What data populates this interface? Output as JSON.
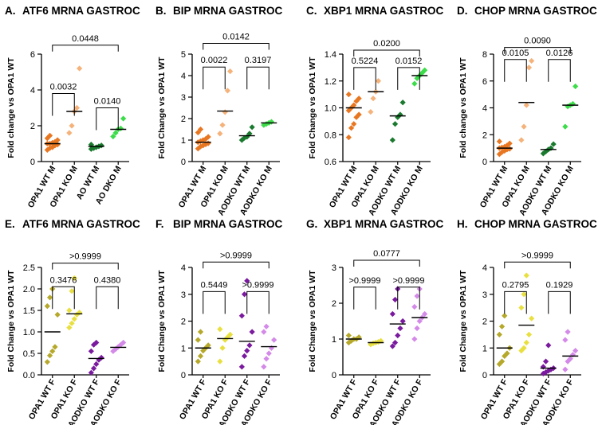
{
  "colors": {
    "orange": "#e87722",
    "light_orange": "#f5b27a",
    "dark_green": "#1a7a2e",
    "light_green": "#3ddc4a",
    "olive": "#b5a82a",
    "yellow": "#e8e040",
    "purple": "#7a1a9e",
    "light_purple": "#d48ae8"
  },
  "chart_data": [
    {
      "panel_label": "A.",
      "title": "ATF6 MRNA GASTROC",
      "type": "scatter",
      "ylabel": "Fold change vs OPA1 WT",
      "ylim": [
        0,
        6
      ],
      "yticks": [
        0,
        2,
        4,
        6
      ],
      "categories": [
        "OPA1 WT M",
        "OPA1 KO M",
        "AO WT M",
        "AO DKO M"
      ],
      "colors": [
        "orange",
        "light_orange",
        "dark_green",
        "light_green"
      ],
      "means": [
        1.0,
        2.8,
        0.85,
        1.8
      ],
      "points": [
        [
          0.65,
          0.75,
          0.8,
          0.9,
          0.95,
          1.0,
          1.0,
          1.05,
          1.1,
          1.2,
          1.3,
          1.45
        ],
        [
          1.6,
          2.0,
          2.8,
          3.0,
          5.2
        ],
        [
          0.7,
          0.75,
          0.8,
          0.85,
          0.9,
          0.95
        ],
        [
          1.4,
          1.6,
          1.8,
          1.85,
          2.4
        ]
      ],
      "comparisons": [
        {
          "from": 0,
          "to": 1,
          "label": "0.0032",
          "y": 3.8
        },
        {
          "from": 2,
          "to": 3,
          "label": "0.0140",
          "y": 3.0
        },
        {
          "from": 0,
          "to": 3,
          "label": "0.0448",
          "y": 6.5
        }
      ]
    },
    {
      "panel_label": "B.",
      "title": "BIP MRNA GASTROC",
      "type": "scatter",
      "ylabel": "Fold Change vs OPA1 WT",
      "ylim": [
        0,
        5
      ],
      "yticks": [
        0,
        1,
        2,
        3,
        4,
        5
      ],
      "categories": [
        "OPA1 WT M",
        "OPA1 KO M",
        "AODKO WT M",
        "AODKO KO M"
      ],
      "colors": [
        "orange",
        "light_orange",
        "dark_green",
        "light_green"
      ],
      "means": [
        0.9,
        2.35,
        1.2,
        1.8
      ],
      "points": [
        [
          0.6,
          0.7,
          0.75,
          0.8,
          0.85,
          0.9,
          0.95,
          1.0,
          1.05,
          1.15,
          1.35,
          1.5
        ],
        [
          1.3,
          1.7,
          2.3,
          3.3,
          4.2
        ],
        [
          1.0,
          1.1,
          1.15,
          1.3,
          1.6
        ],
        [
          1.7,
          1.75,
          1.8,
          1.85
        ]
      ],
      "comparisons": [
        {
          "from": 0,
          "to": 1,
          "label": "0.0022",
          "y": 4.4
        },
        {
          "from": 2,
          "to": 3,
          "label": "0.3197",
          "y": 4.4
        },
        {
          "from": 0,
          "to": 3,
          "label": "0.0142",
          "y": 5.5
        }
      ]
    },
    {
      "panel_label": "C.",
      "title": "XBP1 MRNA GASTROC",
      "type": "scatter",
      "ylabel": "Fold Change vs OPA1 WT",
      "ylim": [
        0.6,
        1.4
      ],
      "yticks": [
        0.6,
        0.8,
        1.0,
        1.2,
        1.4
      ],
      "categories": [
        "OPA1 WT M",
        "OPA1 KO M",
        "AODKO WT M",
        "AODKO KO M"
      ],
      "colors": [
        "orange",
        "light_orange",
        "dark_green",
        "light_green"
      ],
      "means": [
        1.0,
        1.12,
        0.94,
        1.24
      ],
      "points": [
        [
          0.78,
          0.85,
          0.88,
          0.93,
          0.95,
          0.98,
          1.0,
          1.02,
          1.05,
          1.07,
          1.1
        ],
        [
          0.97,
          1.07,
          1.12,
          1.2
        ],
        [
          0.76,
          0.88,
          0.93,
          0.95,
          1.04
        ],
        [
          1.18,
          1.22,
          1.24,
          1.26,
          1.28
        ]
      ],
      "comparisons": [
        {
          "from": 0,
          "to": 1,
          "label": "0.5224",
          "y": 1.3
        },
        {
          "from": 2,
          "to": 3,
          "label": "0.0152",
          "y": 1.3
        },
        {
          "from": 0,
          "to": 3,
          "label": "0.0200",
          "y": 1.43
        }
      ]
    },
    {
      "panel_label": "D.",
      "title": "CHOP MRNA GASTROC",
      "type": "scatter",
      "ylabel": "Fold change vs OPA1 WT",
      "ylim": [
        0,
        8
      ],
      "yticks": [
        0,
        2,
        4,
        6,
        8
      ],
      "categories": [
        "OPA1 WT M",
        "OPA1 KO M",
        "AODKO WT M",
        "AODKO KO M"
      ],
      "colors": [
        "orange",
        "light_orange",
        "dark_green",
        "light_green"
      ],
      "means": [
        1.0,
        4.4,
        0.9,
        4.2
      ],
      "points": [
        [
          0.55,
          0.7,
          0.8,
          0.9,
          0.95,
          1.0,
          1.05,
          1.1,
          1.2,
          1.35,
          1.5
        ],
        [
          1.6,
          2.6,
          4.2,
          7.0,
          7.5
        ],
        [
          0.6,
          0.75,
          0.9,
          1.0,
          1.3
        ],
        [
          2.6,
          4.1,
          4.2,
          4.3,
          5.6
        ]
      ],
      "comparisons": [
        {
          "from": 0,
          "to": 1,
          "label": "0.0105",
          "y": 7.6
        },
        {
          "from": 2,
          "to": 3,
          "label": "0.0126",
          "y": 7.6
        },
        {
          "from": 0,
          "to": 3,
          "label": "0.0090",
          "y": 8.5
        }
      ]
    },
    {
      "panel_label": "E.",
      "title": "ATF6 MRNA GASTROC",
      "type": "scatter",
      "ylabel": "Fold Change vs OPA1  WT",
      "ylim": [
        0,
        2.5
      ],
      "yticks": [
        0,
        0.5,
        1.0,
        1.5,
        2.0,
        2.5
      ],
      "categories": [
        "OPA1 WT F",
        "OPA1 KO F",
        "AODKO WT F",
        "AODKO KO F"
      ],
      "colors": [
        "olive",
        "yellow",
        "purple",
        "light_purple"
      ],
      "means": [
        1.0,
        1.42,
        0.38,
        0.64
      ],
      "points": [
        [
          0.3,
          0.45,
          0.55,
          0.65,
          1.4,
          1.6,
          1.8,
          2.0
        ],
        [
          1.1,
          1.2,
          1.3,
          1.4,
          1.45,
          1.5,
          1.95,
          2.25
        ],
        [
          0.05,
          0.15,
          0.25,
          0.35,
          0.4,
          0.55,
          0.7,
          0.75
        ],
        [
          0.55,
          0.6,
          0.65,
          0.7,
          0.75
        ]
      ],
      "comparisons": [
        {
          "from": 0,
          "to": 1,
          "label": "0.3476",
          "y": 2.05
        },
        {
          "from": 2,
          "to": 3,
          "label": "0.4380",
          "y": 2.05
        },
        {
          "from": 0,
          "to": 3,
          "label": ">0.9999",
          "y": 2.6
        }
      ]
    },
    {
      "panel_label": "F.",
      "title": "BIP MRNA GASTROC",
      "type": "scatter",
      "ylabel": "Fold Change vs OPA1 WT",
      "ylim": [
        0,
        4
      ],
      "yticks": [
        0,
        1,
        2,
        3,
        4
      ],
      "categories": [
        "OPA1 WT F",
        "OPA1 KO F",
        "AODKO WT F",
        "AODKO KO F"
      ],
      "colors": [
        "olive",
        "yellow",
        "purple",
        "light_purple"
      ],
      "means": [
        1.0,
        1.35,
        1.25,
        1.05
      ],
      "points": [
        [
          0.5,
          0.7,
          0.9,
          1.0,
          1.1,
          1.3,
          1.6
        ],
        [
          0.5,
          1.0,
          1.3,
          1.4,
          1.5,
          1.7
        ],
        [
          0.3,
          0.7,
          0.9,
          1.1,
          1.6,
          2.2,
          3.0,
          3.5
        ],
        [
          0.3,
          0.6,
          0.8,
          1.0,
          1.3,
          1.6,
          1.8
        ]
      ],
      "comparisons": [
        {
          "from": 0,
          "to": 1,
          "label": "0.5449",
          "y": 3.1
        },
        {
          "from": 2,
          "to": 3,
          "label": ">0.9999",
          "y": 3.1
        },
        {
          "from": 0,
          "to": 3,
          "label": ">0.9999",
          "y": 4.2
        }
      ]
    },
    {
      "panel_label": "G.",
      "title": "XBP1 MRNA GASTROC",
      "type": "scatter",
      "ylabel": "Fold Change vs OPA1  WT",
      "ylim": [
        0,
        3
      ],
      "yticks": [
        0,
        1,
        2,
        3
      ],
      "categories": [
        "OPA1 WT F",
        "OPA1 KO F",
        "AODKO WT F",
        "AODKO KO F"
      ],
      "colors": [
        "olive",
        "yellow",
        "purple",
        "light_purple"
      ],
      "means": [
        1.0,
        0.9,
        1.42,
        1.6
      ],
      "points": [
        [
          0.9,
          0.95,
          1.0,
          1.0,
          1.05,
          1.1
        ],
        [
          0.85,
          0.88,
          0.9,
          0.92,
          0.95
        ],
        [
          0.8,
          0.9,
          1.1,
          1.3,
          1.5,
          1.7,
          2.1,
          2.4
        ],
        [
          1.0,
          1.3,
          1.5,
          1.6,
          1.7,
          1.9,
          2.2,
          2.4
        ]
      ],
      "comparisons": [
        {
          "from": 0,
          "to": 1,
          "label": ">0.9999",
          "y": 2.45
        },
        {
          "from": 2,
          "to": 3,
          "label": ">0.9999",
          "y": 2.45
        },
        {
          "from": 0,
          "to": 3,
          "label": "0.0777",
          "y": 3.2
        }
      ]
    },
    {
      "panel_label": "H.",
      "title": "CHOP MRNA GASTROC",
      "type": "scatter",
      "ylabel": "Fold Change vs OPA1  WT",
      "ylim": [
        0,
        4
      ],
      "yticks": [
        0,
        1,
        2,
        3,
        4
      ],
      "categories": [
        "OPA1 WT F",
        "OPA1 KO F",
        "AODKO WT F",
        "AODKO KO F"
      ],
      "colors": [
        "olive",
        "yellow",
        "purple",
        "light_purple"
      ],
      "means": [
        1.0,
        1.85,
        0.25,
        0.7
      ],
      "points": [
        [
          0.4,
          0.5,
          0.7,
          0.8,
          1.0,
          1.5,
          1.8,
          2.2
        ],
        [
          0.9,
          1.0,
          1.2,
          1.5,
          2.1,
          2.5,
          3.0,
          3.7
        ],
        [
          0.05,
          0.1,
          0.15,
          0.2,
          0.25,
          0.3,
          0.5,
          1.1
        ],
        [
          0.2,
          0.5,
          0.6,
          0.75,
          0.9,
          1.3,
          1.6
        ]
      ],
      "comparisons": [
        {
          "from": 0,
          "to": 1,
          "label": "0.2795",
          "y": 3.1
        },
        {
          "from": 2,
          "to": 3,
          "label": "0.1929",
          "y": 3.1
        },
        {
          "from": 0,
          "to": 3,
          "label": ">0.9999",
          "y": 4.2
        }
      ]
    }
  ]
}
